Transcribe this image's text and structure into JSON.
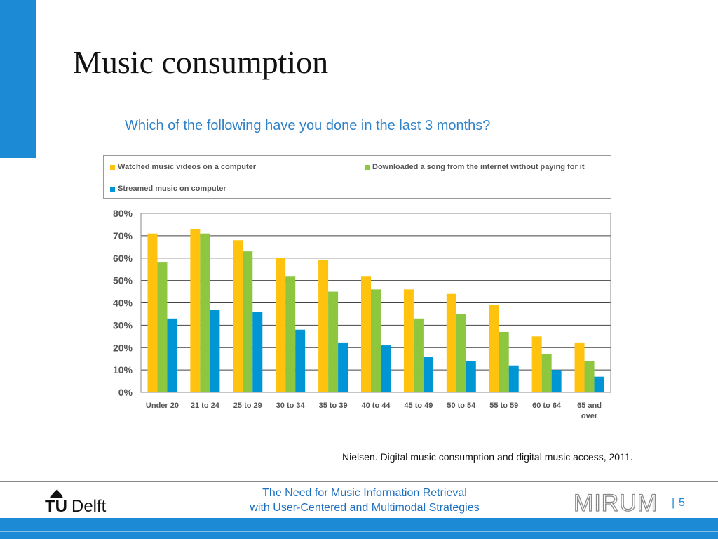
{
  "slide": {
    "title": "Music consumption",
    "source": "Nielsen. Digital music consumption and digital music access, 2011.",
    "page_number": "5",
    "page_separator": "|"
  },
  "footer": {
    "line1": "The Need for Music Information Retrieval",
    "line2": "with User-Centered and Multimodal Strategies",
    "logo_left_tu": "TU",
    "logo_left_delft": "Delft",
    "logo_right": "MIRUM"
  },
  "colors": {
    "accent": "#1d8ad6",
    "series_yellow": "#ffc20e",
    "series_green": "#8dc63f",
    "series_blue": "#0096d6"
  },
  "chart_data": {
    "type": "bar",
    "title": "Which of the following have you done in the last 3 months?",
    "categories": [
      "Under 20",
      "21 to 24",
      "25 to 29",
      "30 to 34",
      "35 to 39",
      "40 to 44",
      "45 to 49",
      "50 to 54",
      "55 to 59",
      "60 to 64",
      "65 and over"
    ],
    "category_lines": [
      [
        "Under 20"
      ],
      [
        "21 to 24"
      ],
      [
        "25 to 29"
      ],
      [
        "30 to 34"
      ],
      [
        "35 to 39"
      ],
      [
        "40 to 44"
      ],
      [
        "45 to 49"
      ],
      [
        "50 to 54"
      ],
      [
        "55 to 59"
      ],
      [
        "60 to 64"
      ],
      [
        "65 and",
        "over"
      ]
    ],
    "series": [
      {
        "name": "Watched music videos on a computer",
        "color": "#ffc20e",
        "values": [
          71,
          73,
          68,
          60,
          59,
          52,
          46,
          44,
          39,
          25,
          22
        ]
      },
      {
        "name": "Downloaded a song from the internet without paying for it",
        "color": "#8dc63f",
        "values": [
          58,
          71,
          63,
          52,
          45,
          46,
          33,
          35,
          27,
          17,
          14
        ]
      },
      {
        "name": "Streamed music on computer",
        "color": "#0096d6",
        "values": [
          33,
          37,
          36,
          28,
          22,
          21,
          16,
          14,
          12,
          10,
          7
        ]
      }
    ],
    "ylim": [
      0,
      80
    ],
    "yticks": [
      "0%",
      "10%",
      "20%",
      "30%",
      "40%",
      "50%",
      "60%",
      "70%",
      "80%"
    ],
    "ytick_values": [
      0,
      10,
      20,
      30,
      40,
      50,
      60,
      70,
      80
    ],
    "grid": true,
    "legend_position": "top",
    "xlabel": "",
    "ylabel": ""
  }
}
